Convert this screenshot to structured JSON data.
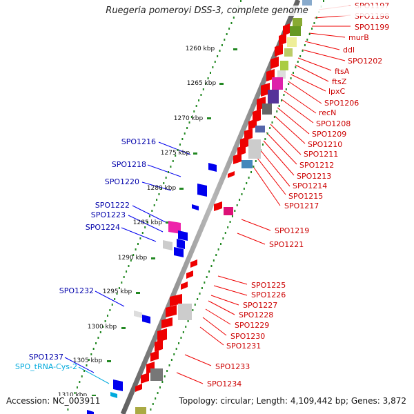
{
  "title": "Ruegeria pomeroyi DSS-3, complete genome",
  "footer": {
    "accession": "Accession: NC_003911",
    "topology": "Topology: circular; Length: 4,109,442 bp; Genes: 3,872"
  },
  "ticks": [
    "1260 kbp",
    "1265 kbp",
    "1270 kbp",
    "1275 kbp",
    "1280 kbp",
    "1285 kbp",
    "1290 kbp",
    "1295 kbp",
    "1300 kbp",
    "1305 kbp",
    "1310 kbp"
  ],
  "right_labels": [
    "SPO1197",
    "SPO1198",
    "SPO1199",
    "murB",
    "ddl",
    "SPO1202",
    "ftsA",
    "ftsZ",
    "lpxC",
    "SPO1206",
    "recN",
    "SPO1208",
    "SPO1209",
    "SPO1210",
    "SPO1211",
    "SPO1212",
    "SPO1213",
    "SPO1214",
    "SPO1215",
    "SPO1217",
    "SPO1219",
    "SPO1221",
    "SPO1225",
    "SPO1226",
    "SPO1227",
    "SPO1228",
    "SPO1229",
    "SPO1230",
    "SPO1231",
    "SPO1233",
    "SPO1234"
  ],
  "left_labels": [
    "SPO1216",
    "SPO1218",
    "SPO1220",
    "SPO1222",
    "SPO1223",
    "SPO1224",
    "SPO1232",
    "SPO1237",
    "SPO_tRNA-Cys-2"
  ],
  "colors": {
    "forward_gene": "#ee0000",
    "reverse_gene": "#0000ee",
    "right_label": "#cc0000",
    "left_label": "#0000aa",
    "trna": "#00aadd",
    "backbone": "#808080",
    "tick": "#228822"
  }
}
